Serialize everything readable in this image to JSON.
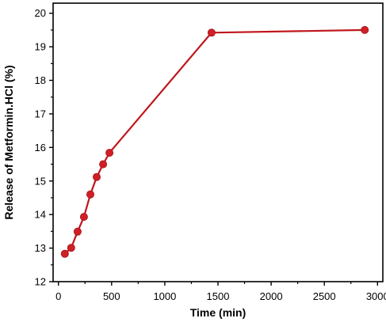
{
  "chart_data": {
    "type": "line",
    "title": "",
    "xlabel": "Time (min)",
    "ylabel": "Release of Metformin.HCl (%)",
    "xlim": [
      -50,
      3050
    ],
    "ylim": [
      12,
      20.3
    ],
    "x_ticks": [
      0,
      500,
      1000,
      1500,
      2000,
      2500,
      3000
    ],
    "x_tick_labels": [
      "0",
      "500",
      "1000",
      "1500",
      "2000",
      "2500",
      "3000"
    ],
    "y_ticks": [
      12,
      13,
      14,
      15,
      16,
      17,
      18,
      19,
      20
    ],
    "y_tick_labels": [
      "12",
      "13",
      "14",
      "15",
      "16",
      "17",
      "18",
      "19",
      "20"
    ],
    "grid": false,
    "legend": "none",
    "series": [
      {
        "x": [
          60,
          120,
          180,
          240,
          300,
          360,
          420,
          480,
          1440,
          2880
        ],
        "y": [
          12.83,
          13.01,
          13.49,
          13.93,
          14.6,
          15.12,
          15.5,
          15.84,
          19.42,
          19.5
        ]
      }
    ],
    "colors": {
      "line": "#c0161c",
      "marker": "#d11f26",
      "axis": "#000000"
    }
  }
}
